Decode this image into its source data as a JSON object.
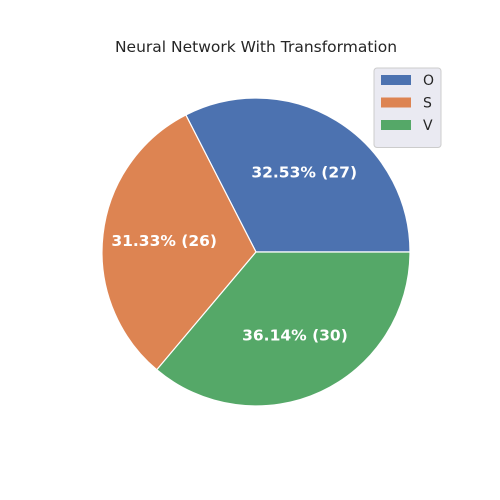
{
  "chart_data": {
    "type": "pie",
    "title": "Neural Network With Transformation",
    "categories": [
      "O",
      "S",
      "V"
    ],
    "values": [
      27,
      26,
      30
    ],
    "percent_labels": [
      "32.53%  (27)",
      "31.33%  (26)",
      "36.14%  (30)"
    ],
    "colors": [
      "#4c72b0",
      "#dd8452",
      "#55a868"
    ],
    "legend_position": "top-right",
    "start_angle_deg": 0,
    "direction": "counterclockwise"
  }
}
